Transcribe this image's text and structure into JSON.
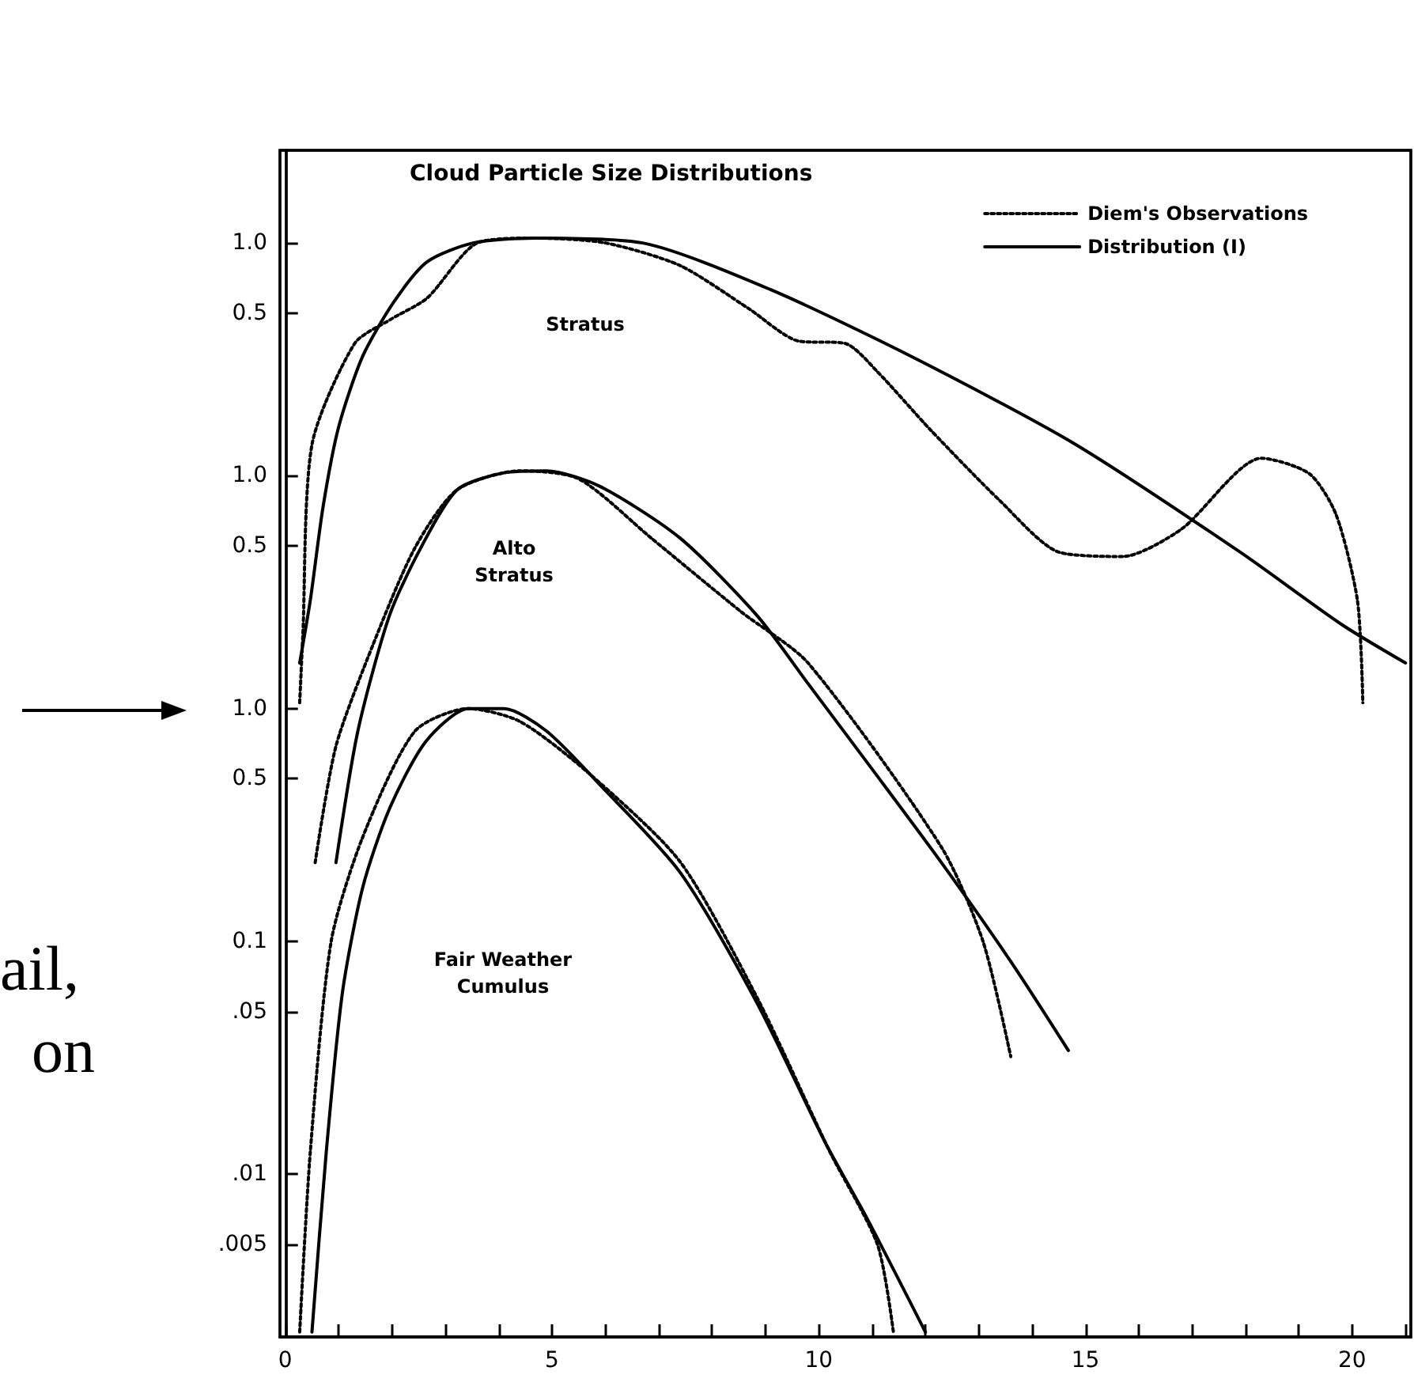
{
  "chart_data": [
    {
      "type": "line",
      "title": "Cloud Particle Size Distributions",
      "xlim": [
        -0.1,
        21.1
      ],
      "ylim": [
        2e-05,
        2.5
      ],
      "yticks": [
        {
          "value": 1,
          "label": "1.0"
        },
        {
          "value": 0.5,
          "label": "0.5"
        }
      ],
      "log": "y",
      "legend": "top right",
      "marker": "none",
      "tick_labels": "y",
      "series": [
        {
          "name": "Diem's Observations",
          "color": "#000000",
          "line_style": "dotted",
          "x": [
            0.27,
            0.33,
            0.5,
            1.3,
            1.98,
            2.66,
            3.6,
            4.67,
            6.0,
            7.4,
            8.7,
            9.6,
            10.5,
            11.1,
            12.1,
            13.4,
            14.5,
            15.7,
            16.8,
            18.3,
            19.2,
            19.7,
            20.1,
            20.2
          ],
          "values": [
            0.0106,
            0.021,
            0.136,
            0.37,
            0.47,
            0.58,
            1.0,
            1.05,
            1.0,
            0.8,
            0.52,
            0.38,
            0.37,
            0.28,
            0.157,
            0.078,
            0.047,
            0.045,
            0.059,
            0.119,
            0.102,
            0.068,
            0.029,
            0.0106
          ]
        },
        {
          "name": "Distribution (I)",
          "color": "#000000",
          "line_style": "solid",
          "x": [
            0.27,
            0.47,
            0.71,
            1.0,
            1.45,
            2.04,
            2.66,
            3.52,
            4.67,
            6.7,
            9.1,
            11.8,
            14.8,
            17.9,
            19.8,
            21.0
          ],
          "values": [
            0.0157,
            0.0293,
            0.074,
            0.162,
            0.326,
            0.56,
            0.83,
            1.0,
            1.05,
            1.0,
            0.63,
            0.32,
            0.137,
            0.047,
            0.023,
            0.0157
          ]
        }
      ],
      "annotations": [
        "Stratus"
      ]
    },
    {
      "type": "line",
      "xlim": [
        -0.1,
        21.1
      ],
      "ylim": [
        0.0002,
        25
      ],
      "yticks": [
        {
          "value": 1,
          "label": "1.0"
        },
        {
          "value": 0.5,
          "label": "0.5"
        }
      ],
      "log": "y",
      "marker": "none",
      "tick_labels": "y",
      "series": [
        {
          "color": "#000000",
          "line_style": "dotted",
          "x": [
            0.56,
            0.95,
            1.66,
            2.43,
            3.22,
            4.4,
            5.5,
            6.86,
            8.55,
            9.8,
            12.3,
            13.08,
            13.6
          ],
          "values": [
            0.0218,
            0.069,
            0.192,
            0.49,
            0.87,
            1.05,
            0.97,
            0.54,
            0.26,
            0.157,
            0.0254,
            0.01,
            0.0032
          ]
        },
        {
          "color": "#000000",
          "line_style": "solid",
          "x": [
            0.95,
            1.36,
            1.95,
            2.54,
            3.22,
            4.1,
            4.9,
            5.9,
            7.4,
            8.85,
            9.8,
            11.0,
            12.3,
            13.6,
            14.68
          ],
          "values": [
            0.0218,
            0.08,
            0.25,
            0.49,
            0.87,
            1.03,
            1.05,
            0.9,
            0.54,
            0.25,
            0.128,
            0.055,
            0.0218,
            0.0082,
            0.0034
          ]
        }
      ],
      "annotations": [
        "Alto\nStratus"
      ]
    },
    {
      "type": "line",
      "xlim": [
        -0.1,
        21.1
      ],
      "xticks": [
        0,
        {
          "value": 1,
          "label": null
        },
        {
          "value": 2,
          "label": null
        },
        {
          "value": 3,
          "label": null
        },
        {
          "value": 4,
          "label": null
        },
        5,
        {
          "value": 6,
          "label": null
        },
        {
          "value": 7,
          "label": null
        },
        {
          "value": 8,
          "label": null
        },
        {
          "value": 9,
          "label": null
        },
        10,
        {
          "value": 11,
          "label": null
        },
        {
          "value": 12,
          "label": null
        },
        {
          "value": 13,
          "label": null
        },
        {
          "value": 14,
          "label": null
        },
        15,
        {
          "value": 16,
          "label": null
        },
        {
          "value": 17,
          "label": null
        },
        {
          "value": 18,
          "label": null
        },
        {
          "value": 19,
          "label": null
        },
        20,
        {
          "value": 21,
          "label": null
        }
      ],
      "ylim": [
        0.002,
        250
      ],
      "yticks": [
        {
          "value": 1,
          "label": "1.0"
        },
        {
          "value": 0.5,
          "label": "0.5"
        },
        {
          "value": 0.1,
          "label": "0.1"
        },
        {
          "value": 0.05,
          "label": ".05"
        },
        {
          "value": 0.01,
          "label": ".01"
        },
        {
          "value": 0.005,
          "label": ".005"
        }
      ],
      "log": "y",
      "marker": "none",
      "series": [
        {
          "color": "#000000",
          "line_style": "dotted",
          "x": [
            0.27,
            0.47,
            0.86,
            1.45,
            2.43,
            3.43,
            4.4,
            5.68,
            7.4,
            8.85,
            10.2,
            11.1,
            11.4
          ],
          "values": [
            0.0021,
            0.0126,
            0.1,
            0.28,
            0.8,
            1.0,
            0.88,
            0.53,
            0.22,
            0.057,
            0.0126,
            0.005,
            0.0021
          ]
        },
        {
          "color": "#000000",
          "line_style": "solid",
          "x": [
            0.5,
            0.77,
            1.07,
            1.45,
            1.95,
            2.63,
            3.43,
            4.1,
            4.9,
            5.9,
            7.4,
            8.85,
            10.1,
            10.9,
            12.0
          ],
          "values": [
            0.0021,
            0.0126,
            0.06,
            0.17,
            0.37,
            0.72,
            1.0,
            1.0,
            0.8,
            0.47,
            0.198,
            0.054,
            0.014,
            0.0065,
            0.0021
          ]
        }
      ],
      "annotations": [
        "Fair Weather\nCumulus",
        "ail,",
        "on"
      ]
    }
  ]
}
